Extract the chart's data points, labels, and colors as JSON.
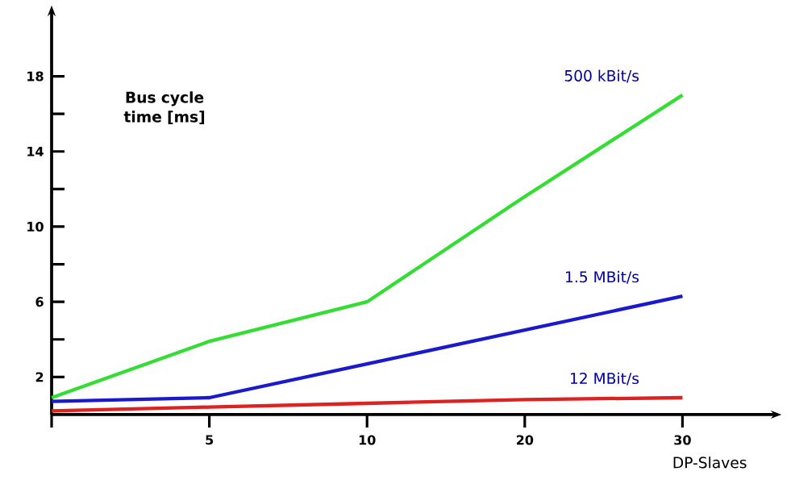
{
  "chart_data": {
    "type": "line",
    "xlabel": "DP-Slaves",
    "ylabel": "Bus cycle time [ms]",
    "categories": [
      null,
      "5",
      "10",
      "20",
      "30"
    ],
    "series": [
      {
        "name": "500 kBit/s",
        "color": "#33dd33",
        "values": [
          0.9,
          3.9,
          6,
          11.6,
          17
        ]
      },
      {
        "name": "1.5 MBit/s",
        "color": "#1a1acc",
        "values": [
          0.7,
          0.9,
          2.7,
          4.5,
          6.3
        ]
      },
      {
        "name": "12 MBit/s",
        "color": "#dd2222",
        "values": [
          0.2,
          0.4,
          0.6,
          0.8,
          0.9
        ]
      }
    ],
    "ylim": [
      0,
      21.2
    ],
    "yticks": [
      {
        "value": 2,
        "label": "2"
      },
      {
        "value": 4,
        "label": null
      },
      {
        "value": 6,
        "label": "6"
      },
      {
        "value": 8,
        "label": null
      },
      {
        "value": 10,
        "label": "10"
      },
      {
        "value": 12,
        "label": null
      },
      {
        "value": 14,
        "label": "14"
      },
      {
        "value": 16,
        "label": null
      },
      {
        "value": 18,
        "label": "18"
      }
    ],
    "grid": false,
    "legend": false,
    "marker": "none",
    "line_style": "solid"
  }
}
